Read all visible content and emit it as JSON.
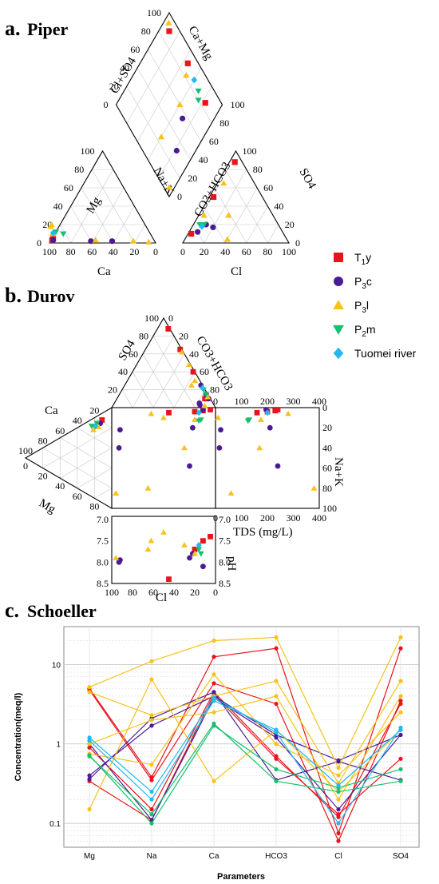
{
  "panels": {
    "a": {
      "letter": "a.",
      "name": "Piper"
    },
    "b": {
      "letter": "b.",
      "name": "Durov"
    },
    "c": {
      "letter": "c.",
      "name": "Schoeller"
    }
  },
  "legend": [
    {
      "label": "T",
      "sub": "1",
      "suffix": "y",
      "color": "#e8141c",
      "marker": "square"
    },
    {
      "label": "P",
      "sub": "3",
      "suffix": "c",
      "color": "#4b1b94",
      "marker": "circle"
    },
    {
      "label": "P",
      "sub": "3",
      "suffix": "l",
      "color": "#f7c21a",
      "marker": "triangle-up"
    },
    {
      "label": "P",
      "sub": "2",
      "suffix": "m",
      "color": "#17c06e",
      "marker": "triangle-down"
    },
    {
      "label": "Tuomei river",
      "sub": "",
      "suffix": "",
      "color": "#22b8f0",
      "marker": "diamond"
    }
  ],
  "chart_data": [
    {
      "type": "scatter",
      "title": "Piper",
      "diagram": "piper",
      "labels": {
        "mg": "Mg",
        "ca": "Ca",
        "nak": "Na+K",
        "co3hco3": "CO3+HCO3",
        "so4": "SO4",
        "cl": "Cl",
        "clso4": "Cl+SO4",
        "camg": "Ca+Mg"
      },
      "tick_values": [
        "0",
        "20",
        "40",
        "60",
        "80",
        "100"
      ],
      "cation_points_ca_mg": [
        {
          "group": 0,
          "ca": 96,
          "mg": 3
        },
        {
          "group": 0,
          "ca": 94,
          "mg": 5
        },
        {
          "group": 1,
          "ca": 95,
          "mg": 3
        },
        {
          "group": 1,
          "ca": 60,
          "mg": 2
        },
        {
          "group": 1,
          "ca": 40,
          "mg": 2
        },
        {
          "group": 2,
          "ca": 90,
          "mg": 18
        },
        {
          "group": 2,
          "ca": 88,
          "mg": 20
        },
        {
          "group": 2,
          "ca": 55,
          "mg": 3
        },
        {
          "group": 2,
          "ca": 20,
          "mg": 2
        },
        {
          "group": 2,
          "ca": 6,
          "mg": 1
        },
        {
          "group": 2,
          "ca": 92,
          "mg": 10
        },
        {
          "group": 3,
          "ca": 88,
          "mg": 12
        },
        {
          "group": 3,
          "ca": 82,
          "mg": 10
        },
        {
          "group": 4,
          "ca": 91,
          "mg": 11
        }
      ],
      "anion_points_cl_so4": [
        {
          "group": 0,
          "cl": 5,
          "so4": 88
        },
        {
          "group": 0,
          "cl": 4,
          "so4": 50
        },
        {
          "group": 0,
          "cl": 3,
          "so4": 10
        },
        {
          "group": 1,
          "cl": 8,
          "so4": 12
        },
        {
          "group": 1,
          "cl": 12,
          "so4": 20
        },
        {
          "group": 1,
          "cl": 20,
          "so4": 17
        },
        {
          "group": 2,
          "cl": 6,
          "so4": 65
        },
        {
          "group": 2,
          "cl": 28,
          "so4": 30
        },
        {
          "group": 2,
          "cl": 40,
          "so4": 4
        },
        {
          "group": 2,
          "cl": 5,
          "so4": 30
        },
        {
          "group": 3,
          "cl": 10,
          "so4": 20
        },
        {
          "group": 3,
          "cl": 6,
          "so4": 20
        },
        {
          "group": 4,
          "cl": 9,
          "so4": 18
        }
      ],
      "diamond_points_clso4_camg": [
        {
          "group": 0,
          "clso4": 90,
          "camg": 90
        },
        {
          "group": 0,
          "clso4": 55,
          "camg": 90
        },
        {
          "group": 0,
          "clso4": 17,
          "camg": 85
        },
        {
          "group": 1,
          "clso4": 30,
          "camg": 55
        },
        {
          "group": 1,
          "clso4": 18,
          "camg": 32
        },
        {
          "group": 2,
          "clso4": 95,
          "camg": 94
        },
        {
          "group": 2,
          "clso4": 50,
          "camg": 82
        },
        {
          "group": 2,
          "clso4": 40,
          "camg": 60
        },
        {
          "group": 2,
          "clso4": 40,
          "camg": 25
        },
        {
          "group": 2,
          "clso4": 5,
          "camg": 5
        },
        {
          "group": 3,
          "clso4": 30,
          "camg": 85
        },
        {
          "group": 3,
          "clso4": 25,
          "camg": 80
        },
        {
          "group": 4,
          "clso4": 40,
          "camg": 87
        }
      ]
    },
    {
      "type": "scatter",
      "title": "Durov",
      "diagram": "durov",
      "labels": {
        "so4": "SO4",
        "co3hco3": "CO3+HCO3",
        "ca": "Ca",
        "mg": "Mg",
        "nak": "Na+K",
        "tds": "TDS (mg/L)",
        "ph": "pH",
        "cl": "Cl"
      },
      "tds_ticks": [
        "0",
        "100",
        "200",
        "300",
        "400"
      ],
      "nak_ticks": [
        "0",
        "20",
        "40",
        "60",
        "80",
        "100"
      ],
      "ph_ticks": [
        "7.0",
        "7.5",
        "8.0",
        "8.5"
      ],
      "points": [
        {
          "group": 0,
          "cl": 5,
          "nak": 2,
          "tds": 240,
          "ph": 7.4,
          "so4": 88
        },
        {
          "group": 0,
          "cl": 20,
          "nak": 4,
          "tds": 200,
          "ph": 7.7,
          "so4": 40
        },
        {
          "group": 0,
          "cl": 45,
          "nak": 5,
          "tds": 160,
          "ph": 8.4,
          "so4": 10
        },
        {
          "group": 0,
          "cl": 12,
          "nak": 3,
          "tds": 230,
          "ph": 7.5,
          "so4": 65
        },
        {
          "group": 1,
          "cl": 12,
          "nak": 2,
          "tds": 195,
          "ph": 8.1,
          "so4": 10
        },
        {
          "group": 1,
          "cl": 22,
          "nak": 20,
          "tds": 210,
          "ph": 7.8,
          "so4": 25
        },
        {
          "group": 1,
          "cl": 25,
          "nak": 58,
          "tds": 240,
          "ph": 7.9,
          "so4": 15
        },
        {
          "group": 1,
          "cl": 92,
          "nak": 22,
          "tds": 20,
          "ph": 7.95,
          "so4": 5
        },
        {
          "group": 1,
          "cl": 93,
          "nak": 40,
          "tds": 15,
          "ph": 8.0,
          "so4": 3
        },
        {
          "group": 2,
          "cl": 50,
          "nak": 10,
          "tds": 10,
          "ph": 7.3,
          "so4": 62
        },
        {
          "group": 2,
          "cl": 30,
          "nak": 40,
          "tds": 170,
          "ph": 7.6,
          "so4": 48
        },
        {
          "group": 2,
          "cl": 62,
          "nak": 6,
          "tds": 280,
          "ph": 7.5,
          "so4": 30
        },
        {
          "group": 2,
          "cl": 96,
          "nak": 85,
          "tds": 60,
          "ph": 7.9,
          "so4": 25
        },
        {
          "group": 2,
          "cl": 65,
          "nak": 80,
          "tds": 380,
          "ph": 7.7,
          "so4": 2
        },
        {
          "group": 2,
          "cl": 20,
          "nak": 12,
          "tds": 175,
          "ph": 7.8,
          "so4": 12
        },
        {
          "group": 3,
          "cl": 14,
          "nak": 12,
          "tds": 130,
          "ph": 7.8,
          "so4": 20
        },
        {
          "group": 3,
          "cl": 16,
          "nak": 13,
          "tds": 125,
          "ph": 7.7,
          "so4": 15
        },
        {
          "group": 4,
          "cl": 16,
          "nak": 5,
          "tds": 200,
          "ph": 7.6,
          "so4": 22
        }
      ]
    },
    {
      "type": "line",
      "title": "Schoeller",
      "yscale": "log",
      "ylabel": "Concentration(meq/l)",
      "xlabel": "Parameters",
      "categories": [
        "Mg",
        "Na",
        "Ca",
        "HCO3",
        "Cl",
        "SO4"
      ],
      "yticks": [
        "0.1",
        "1",
        "10"
      ],
      "ylim": [
        0.05,
        30
      ],
      "series": [
        {
          "group": 0,
          "values": [
            5.0,
            0.38,
            12.5,
            16.0,
            0.075,
            16.0
          ]
        },
        {
          "group": 0,
          "values": [
            4.8,
            0.35,
            5.8,
            3.2,
            0.06,
            3.5
          ]
        },
        {
          "group": 0,
          "values": [
            0.34,
            0.11,
            4.2,
            0.65,
            0.13,
            0.65
          ]
        },
        {
          "group": 0,
          "values": [
            0.9,
            0.15,
            4.5,
            0.7,
            0.12,
            3.2
          ]
        },
        {
          "group": 1,
          "values": [
            0.4,
            1.7,
            4.0,
            1.3,
            0.62,
            1.3
          ]
        },
        {
          "group": 1,
          "values": [
            0.36,
            2.1,
            4.5,
            0.35,
            0.6,
            0.35
          ]
        },
        {
          "group": 1,
          "values": [
            1.0,
            0.11,
            3.8,
            1.2,
            0.15,
            1.3
          ]
        },
        {
          "group": 2,
          "values": [
            5.2,
            11.0,
            20.0,
            22.0,
            0.5,
            22.0
          ]
        },
        {
          "group": 2,
          "values": [
            0.15,
            6.5,
            0.34,
            1.5,
            0.25,
            1.5
          ]
        },
        {
          "group": 2,
          "values": [
            4.5,
            2.3,
            4.0,
            6.2,
            0.32,
            6.2
          ]
        },
        {
          "group": 2,
          "values": [
            0.75,
            0.55,
            7.5,
            1.0,
            0.4,
            2.5
          ]
        },
        {
          "group": 2,
          "values": [
            1.0,
            2.0,
            2.5,
            4.0,
            0.2,
            4.0
          ]
        },
        {
          "group": 3,
          "values": [
            0.72,
            0.1,
            1.7,
            0.48,
            0.28,
            0.48
          ]
        },
        {
          "group": 3,
          "values": [
            0.7,
            0.13,
            1.8,
            0.34,
            0.25,
            0.34
          ]
        },
        {
          "group": 4,
          "values": [
            1.1,
            0.2,
            3.5,
            1.5,
            0.3,
            1.5
          ]
        },
        {
          "group": 4,
          "values": [
            1.2,
            0.25,
            3.8,
            1.4,
            0.1,
            1.6
          ]
        }
      ]
    }
  ]
}
